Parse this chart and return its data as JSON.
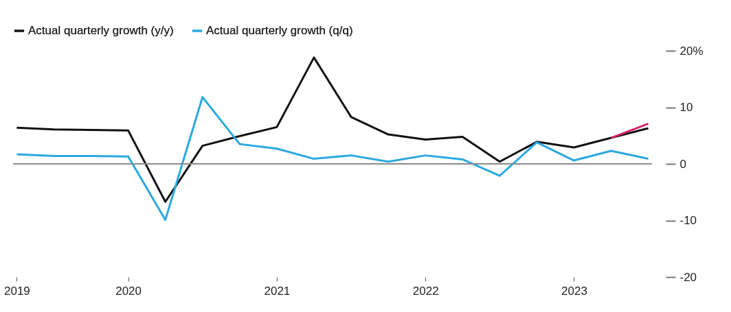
{
  "chart_data": {
    "type": "line",
    "categories": [
      "2019",
      null,
      null,
      "2020",
      null,
      null,
      null,
      "2021",
      null,
      null,
      null,
      "2022",
      null,
      null,
      null,
      "2023",
      null,
      null
    ],
    "series": [
      {
        "name": "Actual quarterly growth (y/y)",
        "color": "#111111",
        "values": [
          6.4,
          6.1,
          6.0,
          5.9,
          -6.7,
          3.2,
          4.9,
          6.5,
          18.8,
          8.3,
          5.2,
          4.3,
          4.8,
          0.4,
          3.9,
          2.9,
          4.6,
          6.3
        ]
      },
      {
        "name": "Actual quarterly growth (q/q)",
        "color": "#29a8e0",
        "values": [
          1.7,
          1.4,
          1.4,
          1.3,
          -9.9,
          11.8,
          3.5,
          2.7,
          0.9,
          1.5,
          0.4,
          1.5,
          0.8,
          -2.1,
          3.8,
          0.6,
          2.3,
          0.9
        ]
      },
      {
        "color": "#d6246e",
        "values": [
          null,
          null,
          null,
          null,
          null,
          null,
          null,
          null,
          null,
          null,
          null,
          null,
          null,
          null,
          null,
          null,
          4.6,
          7.1
        ]
      }
    ],
    "ylim": [
      -20,
      20
    ],
    "yticks": [
      {
        "value": 20,
        "label": "20%"
      },
      10,
      0,
      -10,
      -20
    ],
    "ref_lines": [
      {
        "axis": "y",
        "value": 0,
        "color": "#8a8a8a"
      }
    ],
    "grid": false,
    "legend": "top left",
    "line_style": "solid",
    "marker": "none"
  }
}
